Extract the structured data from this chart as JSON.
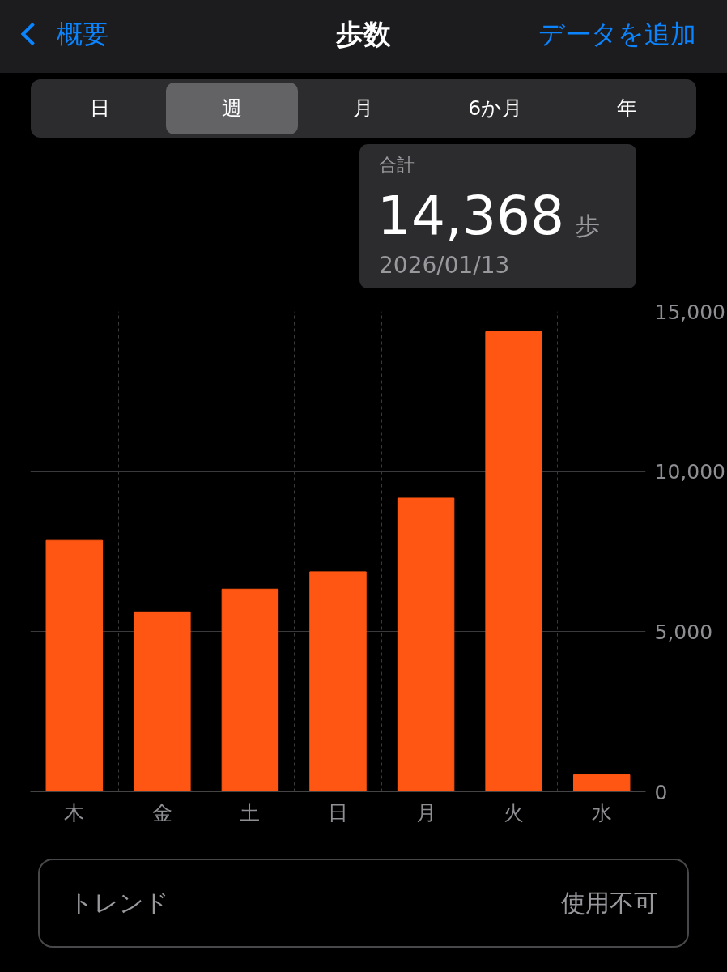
{
  "chart_data": {
    "type": "bar",
    "title": "歩数",
    "categories": [
      "木",
      "金",
      "土",
      "日",
      "月",
      "火",
      "水"
    ],
    "values": [
      7850,
      5620,
      6330,
      6870,
      9170,
      14368,
      530
    ],
    "color": "#ff5713",
    "ylim": [
      0,
      15000
    ],
    "yticks": [
      0,
      {
        "value": 5000,
        "label": "5,000"
      },
      {
        "value": 10000,
        "label": "10,000"
      },
      {
        "value": 15000,
        "label": "15,000"
      }
    ],
    "grid": true,
    "value_labels": [
      null,
      null,
      null,
      null,
      null,
      "14,368",
      null
    ],
    "annotations": [
      "概要",
      "データを追加",
      "日",
      "週",
      "月",
      "6か月",
      "年",
      "合計",
      "歩",
      "2026/01/13",
      "トレンド",
      "使用不可"
    ]
  }
}
